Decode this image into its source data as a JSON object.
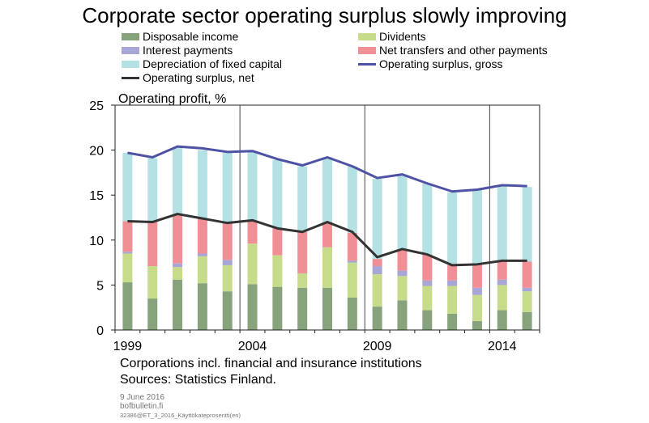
{
  "title": "Corporate sector operating surplus slowly improving",
  "legend": [
    {
      "label": "Disposable income",
      "color": "#87a37c",
      "kind": "bar"
    },
    {
      "label": "Dividents",
      "color": "#c6dc8b",
      "kind": "bar"
    },
    {
      "label": "Interest payments",
      "color": "#a7a6d6",
      "kind": "bar"
    },
    {
      "label": "Net transfers and other payments",
      "color": "#f08f96",
      "kind": "bar"
    },
    {
      "label": "Depreciation of fixed capital",
      "color": "#b4e1e3",
      "kind": "bar"
    },
    {
      "label": "Operating surplus, gross",
      "color": "#4e52a4",
      "kind": "line"
    },
    {
      "label": "Operating surplus, net",
      "color": "#333333",
      "kind": "line"
    }
  ],
  "notes": {
    "line1": "Corporations incl. financial and insurance institutions",
    "line2": "Sources: Statistics Finland."
  },
  "footer": {
    "date": "9 June 2016",
    "site": "bofbulletin.fi",
    "code": "32386@ET_3_2016_Käyttökateprosentti(en)"
  },
  "chart_data": {
    "type": "bar",
    "stacked": true,
    "ylabel": "Operating profit, %",
    "ylim": [
      0,
      25
    ],
    "yticks": [
      0,
      5,
      10,
      15,
      20,
      25
    ],
    "x": [
      1999,
      2000,
      2001,
      2002,
      2003,
      2004,
      2005,
      2006,
      2007,
      2008,
      2009,
      2010,
      2011,
      2012,
      2013,
      2014,
      2015
    ],
    "xtick_labels": [
      "1999",
      "2004",
      "2009",
      "2014"
    ],
    "series": [
      {
        "name": "Disposable income",
        "color": "#87a37c",
        "values": [
          5.3,
          3.5,
          5.6,
          5.2,
          4.3,
          5.1,
          4.8,
          4.7,
          4.7,
          3.6,
          2.6,
          3.3,
          2.2,
          1.8,
          1.0,
          2.2,
          2.0
        ]
      },
      {
        "name": "Dividents",
        "color": "#c6dc8b",
        "values": [
          3.2,
          3.6,
          1.4,
          3.0,
          2.9,
          4.5,
          3.5,
          1.6,
          4.5,
          3.9,
          3.6,
          2.7,
          2.7,
          3.1,
          2.9,
          2.8,
          2.3
        ]
      },
      {
        "name": "Interest payments",
        "color": "#a7a6d6",
        "values": [
          0.2,
          0.0,
          0.4,
          0.3,
          0.6,
          0.0,
          0.0,
          0.0,
          0.0,
          0.2,
          0.9,
          0.6,
          0.6,
          0.6,
          0.8,
          0.6,
          0.4
        ]
      },
      {
        "name": "Net transfers and other payments",
        "color": "#f08f96",
        "values": [
          3.4,
          4.9,
          5.4,
          3.9,
          4.1,
          2.5,
          3.0,
          4.6,
          2.8,
          3.1,
          0.8,
          2.3,
          2.9,
          1.7,
          2.6,
          2.1,
          2.9
        ]
      },
      {
        "name": "Depreciation of fixed capital",
        "color": "#b4e1e3",
        "values": [
          7.6,
          7.1,
          7.5,
          7.6,
          7.9,
          7.8,
          7.6,
          7.3,
          7.2,
          7.4,
          8.9,
          8.4,
          7.9,
          8.1,
          8.3,
          8.4,
          8.3
        ]
      }
    ],
    "lines": [
      {
        "name": "Operating surplus, gross",
        "color": "#4e52a4",
        "values": [
          19.7,
          19.2,
          20.4,
          20.2,
          19.8,
          19.9,
          19.0,
          18.3,
          19.2,
          18.2,
          16.9,
          17.3,
          16.3,
          15.4,
          15.6,
          16.1,
          16.0
        ]
      },
      {
        "name": "Operating surplus, net",
        "color": "#333333",
        "values": [
          12.1,
          12.0,
          12.9,
          12.4,
          11.9,
          12.2,
          11.3,
          10.9,
          12.0,
          10.9,
          8.1,
          9.0,
          8.4,
          7.2,
          7.3,
          7.7,
          7.7
        ]
      }
    ],
    "grid": false
  }
}
